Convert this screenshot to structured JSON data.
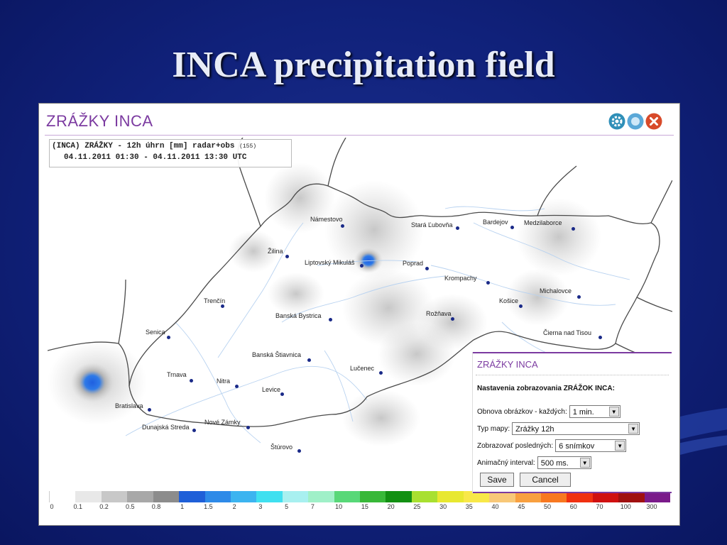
{
  "slide": {
    "title": "INCA precipitation field"
  },
  "app": {
    "title": "ZRÁŽKY INCA",
    "buttons": [
      {
        "name": "settings-button",
        "icon": "gear-icon",
        "color": "#2f8fb8"
      },
      {
        "name": "refresh-button",
        "icon": "refresh-icon",
        "color": "#5aa8d8"
      },
      {
        "name": "close-button",
        "icon": "close-icon",
        "color": "#d84a2a"
      }
    ]
  },
  "map": {
    "header_line1": "(INCA) ZRÁŽKY - 12h úhrn [mm] radar+obs",
    "header_count": "(155)",
    "header_line2": "04.11.2011 01:30 - 04.11.2011 13:30 UTC",
    "cities": [
      {
        "name": "Námestovo"
      },
      {
        "name": "Stará Ľubovňa"
      },
      {
        "name": "Bardejov"
      },
      {
        "name": "Medzilaborce"
      },
      {
        "name": "Žilina"
      },
      {
        "name": "Liptovský Mikuláš"
      },
      {
        "name": "Poprad"
      },
      {
        "name": "Krompachy"
      },
      {
        "name": "Michalovce"
      },
      {
        "name": "Trenčín"
      },
      {
        "name": "Košice"
      },
      {
        "name": "Banská Bystrica"
      },
      {
        "name": "Rožňava"
      },
      {
        "name": "Čierna nad Tisou"
      },
      {
        "name": "Senica"
      },
      {
        "name": "Banská Štiavnica"
      },
      {
        "name": "Lučenec"
      },
      {
        "name": "Trnava"
      },
      {
        "name": "Nitra"
      },
      {
        "name": "Levice"
      },
      {
        "name": "Bratislava"
      },
      {
        "name": "Dunajská Streda"
      },
      {
        "name": "Nové Zámky"
      },
      {
        "name": "Štúrovo"
      }
    ]
  },
  "legend": {
    "labels": [
      "0",
      "0.1",
      "0.2",
      "0.5",
      "0.8",
      "1",
      "1.5",
      "2",
      "3",
      "5",
      "7",
      "10",
      "15",
      "20",
      "25",
      "30",
      "35",
      "40",
      "45",
      "50",
      "60",
      "70",
      "100",
      "300"
    ],
    "colors": [
      "#ffffff",
      "#e8e8e8",
      "#c8c8c8",
      "#a8a8a8",
      "#8c8c8c",
      "#1f5fd8",
      "#2e8ae8",
      "#3cb4f0",
      "#40e0f0",
      "#a8f0f0",
      "#a0f0c8",
      "#58d878",
      "#38b838",
      "#129012",
      "#a8e030",
      "#e8e830",
      "#f8e848",
      "#f8c878",
      "#f8a040",
      "#f87820",
      "#f03010",
      "#d01010",
      "#a01010",
      "#7a1a8a"
    ]
  },
  "settings_panel": {
    "title": "ZRÁŽKY INCA",
    "heading": "Nastavenia zobrazovania ZRÁŽOK INCA:",
    "refresh": {
      "label": "Obnova obrázkov - každých:",
      "value": "1 min."
    },
    "map_type": {
      "label": "Typ mapy:",
      "value": "Zrážky 12h"
    },
    "show_last": {
      "label": "Zobrazovať posledných:",
      "value": "6 snímkov"
    },
    "anim_interval": {
      "label": "Animačný interval:",
      "value": "500 ms."
    },
    "save_label": "Save",
    "cancel_label": "Cancel"
  }
}
